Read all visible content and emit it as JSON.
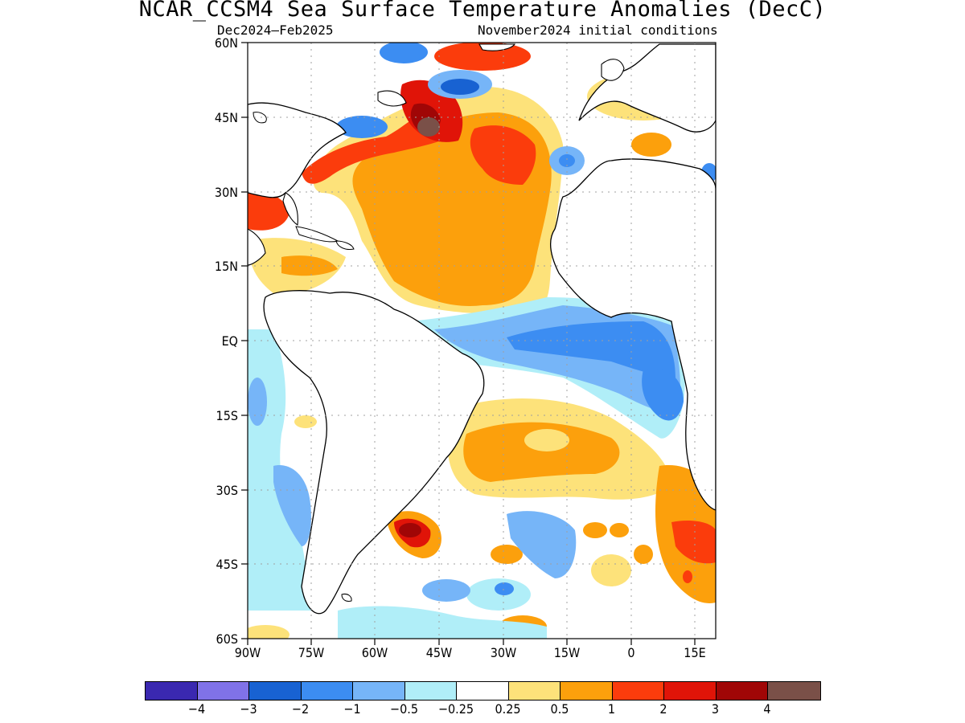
{
  "title": "NCAR_CCSM4 Sea Surface Temperature Anomalies (DecC)",
  "subtitle_left": "Dec2024–Feb2025",
  "subtitle_right": "November2024 initial conditions",
  "axes": {
    "lat_labels": [
      "60N",
      "45N",
      "30N",
      "15N",
      "EQ",
      "15S",
      "30S",
      "45S",
      "60S"
    ],
    "lon_labels": [
      "90W",
      "75W",
      "60W",
      "45W",
      "30W",
      "15W",
      "0",
      "15E"
    ]
  },
  "colorbar": {
    "colors": [
      "#3a28b0",
      "#8072e8",
      "#1862d2",
      "#3c8df2",
      "#76b5f8",
      "#b0eef8",
      "#ffffff",
      "#fde27a",
      "#fca00c",
      "#fb3c0c",
      "#e01408",
      "#a00606",
      "#7a5048"
    ],
    "labels": [
      "−4",
      "−3",
      "−2",
      "−1",
      "−0.5",
      "−0.25",
      "0.25",
      "0.5",
      "1",
      "2",
      "3",
      "4"
    ]
  },
  "colors": {
    "land": "#ffffff",
    "coast": "#000000",
    "grid": "#a0a0a0"
  }
}
